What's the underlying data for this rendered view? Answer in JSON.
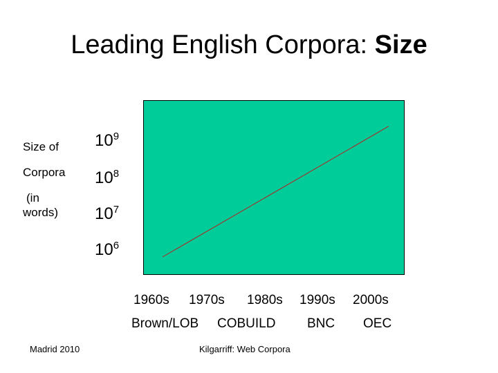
{
  "slide": {
    "title_regular": "Leading English Corpora: ",
    "title_bold": "Size",
    "footer_left": "Madrid 2010",
    "footer_center": "Kilgarriff: Web Corpora"
  },
  "chart_data": {
    "type": "line",
    "title": "Leading English Corpora: Size",
    "ylabel_lines": [
      "Size of",
      "Corpora",
      "(in",
      "words)"
    ],
    "y_scale": "log",
    "y_ticks": [
      {
        "base": "10",
        "exp": "9",
        "value": 1000000000
      },
      {
        "base": "10",
        "exp": "8",
        "value": 100000000
      },
      {
        "base": "10",
        "exp": "7",
        "value": 10000000
      },
      {
        "base": "10",
        "exp": "6",
        "value": 1000000
      }
    ],
    "ylim": [
      1000000,
      1000000000
    ],
    "x": [
      "1960s",
      "1970s",
      "1980s",
      "1990s",
      "2000s"
    ],
    "xlim": [
      "1960s",
      "2000s"
    ],
    "corpora": [
      "Brown/LOB",
      "COBUILD",
      "BNC",
      "OEC"
    ],
    "series": [
      {
        "x": [
          "1960s",
          "2000s"
        ],
        "values": [
          1000000,
          2000000000
        ]
      }
    ],
    "grid": false,
    "legend": "none",
    "colors": {
      "plot_background": "#00CC99",
      "line": "#B22222",
      "frame": "#000000"
    }
  }
}
